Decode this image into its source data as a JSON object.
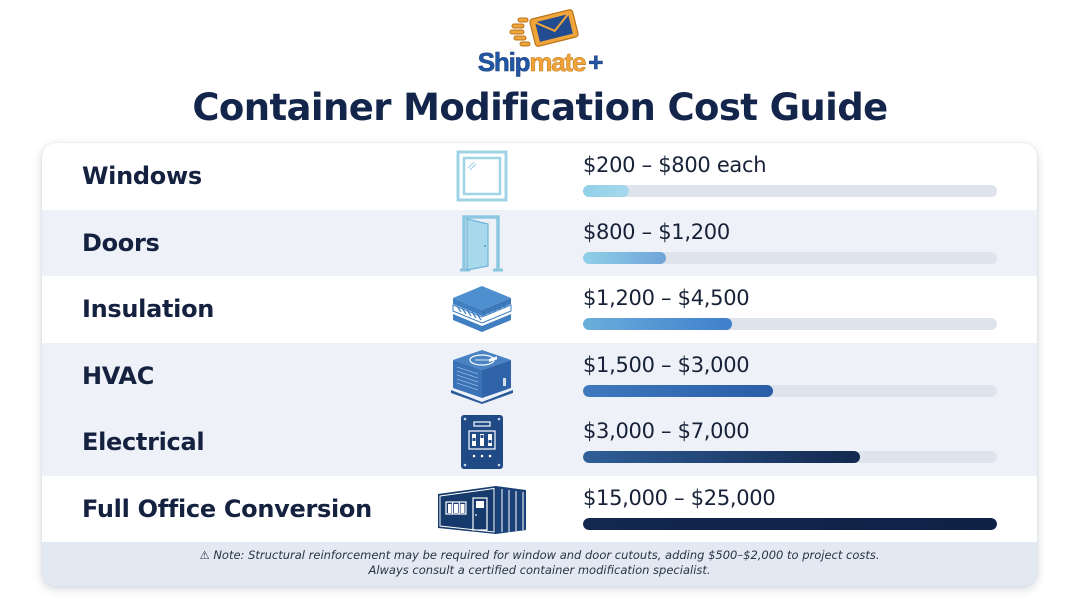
{
  "brand": {
    "name_part1": "Ship",
    "name_part2": "mate",
    "name_part3": "+",
    "colors": {
      "blue": "#2257a6",
      "orange": "#f0a53a"
    }
  },
  "title": "Container Modification Cost Guide",
  "rows": [
    {
      "label": "Windows",
      "icon": "window-icon",
      "price": "$200 – $800 each",
      "bar_pct": 11,
      "bar_from": "#8fd0e8",
      "bar_to": "#a7d8ec",
      "alt": false
    },
    {
      "label": "Doors",
      "icon": "door-icon",
      "price": "$800 – $1,200",
      "bar_pct": 20,
      "bar_from": "#8fd0e8",
      "bar_to": "#6fa4d8",
      "alt": true
    },
    {
      "label": "Insulation",
      "icon": "insulation-icon",
      "price": "$1,200 – $4,500",
      "bar_pct": 36,
      "bar_from": "#6aaedb",
      "bar_to": "#3f7fcc",
      "alt": false
    },
    {
      "label": "HVAC",
      "icon": "hvac-unit-icon",
      "price": "$1,500 – $3,000",
      "bar_pct": 46,
      "bar_from": "#3f79bd",
      "bar_to": "#2a5ea8",
      "alt": true
    },
    {
      "label": "Electrical",
      "icon": "electrical-panel-icon",
      "price": "$3,000 – $7,000",
      "bar_pct": 67,
      "bar_from": "#2f5f98",
      "bar_to": "#13284f",
      "alt": true
    },
    {
      "label": "Full Office Conversion",
      "icon": "office-container-icon",
      "price": "$15,000 – $25,000",
      "bar_pct": 100,
      "bar_from": "#13284f",
      "bar_to": "#0f2145",
      "alt": false
    }
  ],
  "note": {
    "line1": "⚠ Note: Structural reinforcement may be required for window and door cutouts, adding $500–$2,000 to project costs.",
    "line2": "Always consult a certified container modification specialist."
  },
  "chart_data": {
    "type": "bar",
    "orientation": "horizontal",
    "title": "Container Modification Cost Guide",
    "categories": [
      "Windows",
      "Doors",
      "Insulation",
      "HVAC",
      "Electrical",
      "Full Office Conversion"
    ],
    "value_labels": [
      "$200 – $800 each",
      "$800 – $1,200",
      "$1,200 – $4,500",
      "$1,500 – $3,000",
      "$3,000 – $7,000",
      "$15,000 – $25,000"
    ],
    "ranges_usd": [
      [
        200,
        800
      ],
      [
        800,
        1200
      ],
      [
        1200,
        4500
      ],
      [
        1500,
        3000
      ],
      [
        3000,
        7000
      ],
      [
        15000,
        25000
      ]
    ],
    "bar_fill_pct": [
      11,
      20,
      36,
      46,
      67,
      100
    ],
    "xlabel": "",
    "ylabel": "",
    "grid": false,
    "legend": null
  }
}
